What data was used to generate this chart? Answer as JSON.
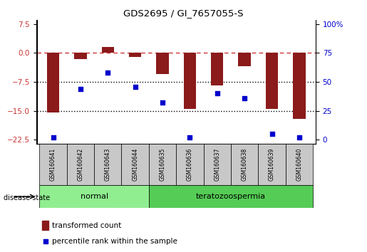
{
  "title": "GDS2695 / GI_7657055-S",
  "samples": [
    "GSM160641",
    "GSM160642",
    "GSM160643",
    "GSM160644",
    "GSM160635",
    "GSM160636",
    "GSM160637",
    "GSM160638",
    "GSM160639",
    "GSM160640"
  ],
  "groups": [
    "normal",
    "normal",
    "normal",
    "normal",
    "teratozoospermia",
    "teratozoospermia",
    "teratozoospermia",
    "teratozoospermia",
    "teratozoospermia",
    "teratozoospermia"
  ],
  "transformed_counts": [
    -15.5,
    -1.5,
    1.5,
    -1.0,
    -5.5,
    -14.5,
    -8.5,
    -3.5,
    -14.5,
    -17.0
  ],
  "percentile_ranks": [
    2,
    44,
    58,
    46,
    32,
    2,
    40,
    36,
    5,
    2
  ],
  "left_ylim": [
    -23.5,
    8.5
  ],
  "left_yticks": [
    7.5,
    0.0,
    -7.5,
    -15.0,
    -22.5
  ],
  "right_yticks_values": [
    7.5,
    0.0,
    -7.5,
    -15.0,
    -22.5
  ],
  "right_yticks_labels": [
    "100%",
    "75",
    "50",
    "25",
    "0"
  ],
  "bar_color": "#8B1A1A",
  "dot_color": "#0000CC",
  "dashed_line_color": "#CC3333",
  "dotted_line_color": "#000000",
  "normal_color": "#90EE90",
  "tera_color": "#55CC55",
  "sample_bg_color": "#C8C8C8",
  "legend_bar_label": "transformed count",
  "legend_dot_label": "percentile rank within the sample",
  "group_label": "disease state"
}
